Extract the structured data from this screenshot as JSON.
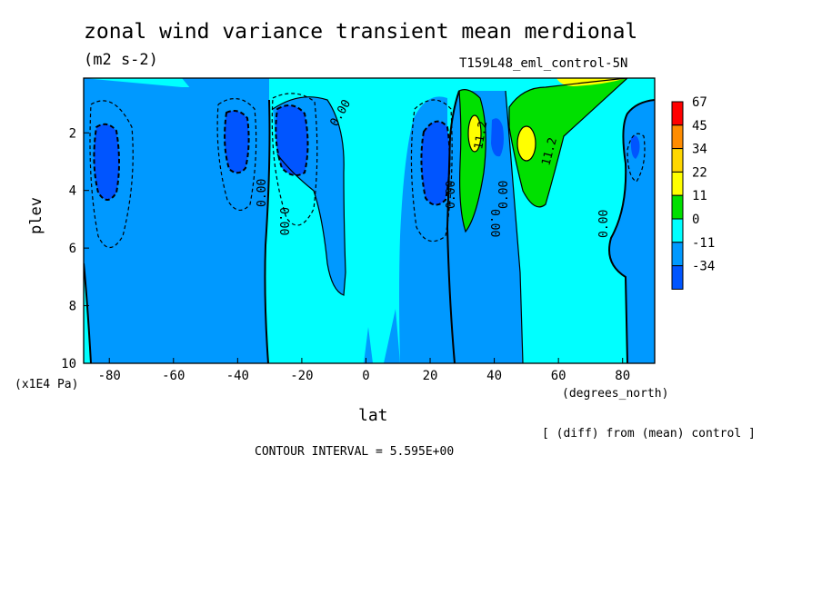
{
  "chart_data": {
    "type": "heatmap",
    "title": "zonal wind variance transient mean merdional",
    "units": "(m2 s-2)",
    "run_name": "T159L48_eml_control-5N",
    "xlabel": "lat",
    "x_units": "(degrees_north)",
    "ylabel": "plev",
    "y_units": "(x1E4 Pa)",
    "xlim": [
      -88,
      90
    ],
    "ylim": [
      10,
      0.1
    ],
    "x_ticks": [
      "-80",
      "-60",
      "-40",
      "-20",
      "0",
      "20",
      "40",
      "60",
      "80"
    ],
    "y_ticks": [
      "2",
      "4",
      "6",
      "8",
      "10"
    ],
    "colorbar": {
      "levels": [
        "67",
        "45",
        "34",
        "22",
        "11",
        "0",
        "-11",
        "-34"
      ],
      "colors": [
        "#ff0000",
        "#ff8c00",
        "#ffd700",
        "#ffff00",
        "#00e000",
        "#00ffff",
        "#0099ff",
        "#0055ff"
      ]
    },
    "contour_labels": [
      "0.00",
      "0.00",
      "0.00",
      "0.00",
      "0.00",
      "0.00",
      "0.00",
      "11.2",
      "11.2",
      "0.00"
    ],
    "footer_note": "[ (diff) from (mean) control ]",
    "contour_interval": "CONTOUR INTERVAL = 5.595E+00"
  }
}
